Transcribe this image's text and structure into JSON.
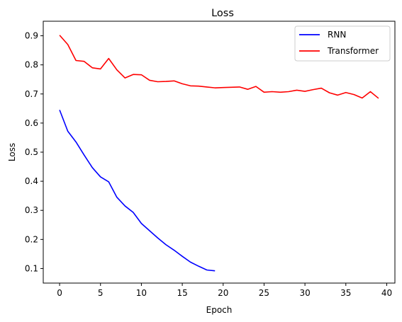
{
  "chart_data": {
    "type": "line",
    "title": "Loss",
    "xlabel": "Epoch",
    "ylabel": "Loss",
    "xlim": [
      -2,
      41
    ],
    "ylim": [
      0.05,
      0.95
    ],
    "xticks": [
      0,
      5,
      10,
      15,
      20,
      25,
      30,
      35,
      40
    ],
    "yticks": [
      0.1,
      0.2,
      0.3,
      0.4,
      0.5,
      0.6,
      0.7,
      0.8,
      0.9
    ],
    "xtick_labels": [
      "0",
      "5",
      "10",
      "15",
      "20",
      "25",
      "30",
      "35",
      "40"
    ],
    "ytick_labels": [
      "0.1",
      "0.2",
      "0.3",
      "0.4",
      "0.5",
      "0.6",
      "0.7",
      "0.8",
      "0.9"
    ],
    "grid": false,
    "legend_position": "upper right",
    "series": [
      {
        "name": "RNN",
        "color": "#0000ff",
        "x": [
          0,
          1,
          2,
          3,
          4,
          5,
          6,
          7,
          8,
          9,
          10,
          11,
          12,
          13,
          14,
          15,
          16,
          17,
          18,
          19
        ],
        "values": [
          0.645,
          0.572,
          0.535,
          0.49,
          0.447,
          0.415,
          0.398,
          0.345,
          0.315,
          0.293,
          0.255,
          0.23,
          0.205,
          0.182,
          0.163,
          0.142,
          0.122,
          0.108,
          0.095,
          0.092
        ]
      },
      {
        "name": "Transformer",
        "color": "#ff0000",
        "x": [
          0,
          1,
          2,
          3,
          4,
          5,
          6,
          7,
          8,
          9,
          10,
          11,
          12,
          13,
          14,
          15,
          16,
          17,
          18,
          19,
          20,
          21,
          22,
          23,
          24,
          25,
          26,
          27,
          28,
          29,
          30,
          31,
          32,
          33,
          34,
          35,
          36,
          37,
          38,
          39
        ],
        "values": [
          0.902,
          0.87,
          0.815,
          0.812,
          0.79,
          0.786,
          0.822,
          0.783,
          0.755,
          0.767,
          0.766,
          0.747,
          0.742,
          0.743,
          0.745,
          0.735,
          0.728,
          0.727,
          0.724,
          0.721,
          0.722,
          0.723,
          0.724,
          0.716,
          0.726,
          0.706,
          0.708,
          0.706,
          0.708,
          0.713,
          0.709,
          0.715,
          0.72,
          0.704,
          0.696,
          0.705,
          0.698,
          0.686,
          0.708,
          0.685
        ]
      }
    ]
  }
}
